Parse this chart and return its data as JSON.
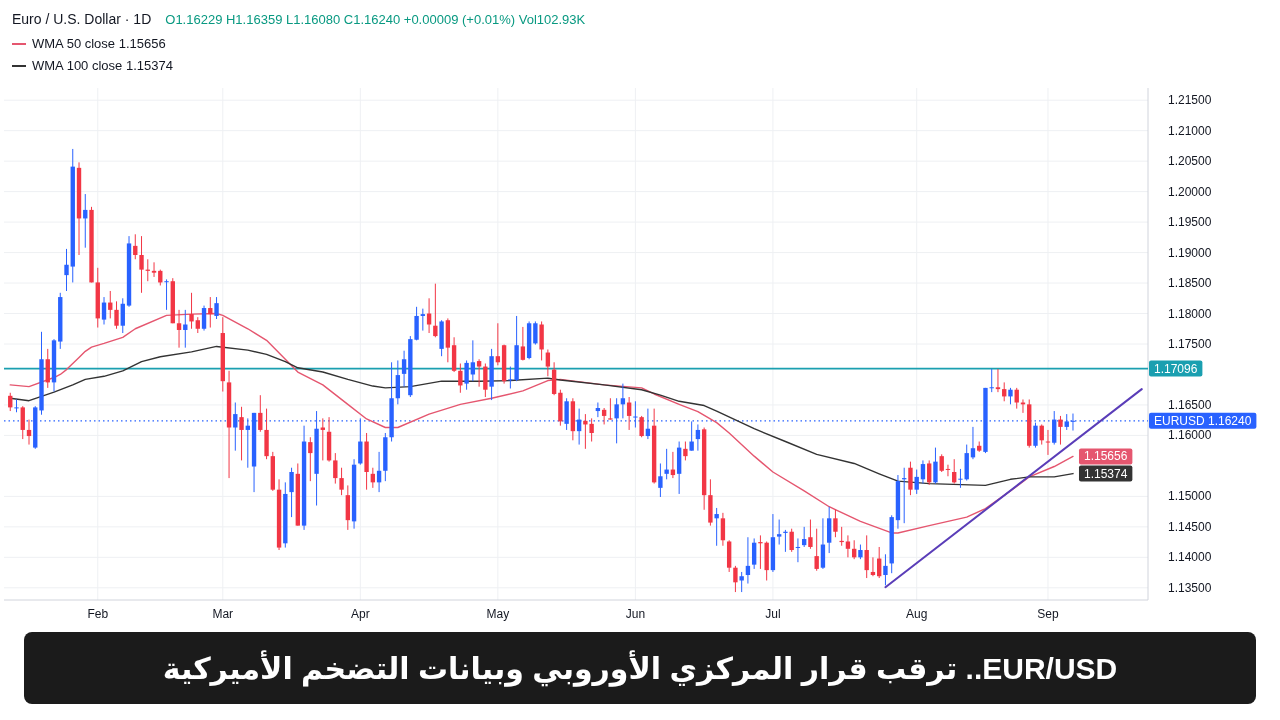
{
  "chart_data": {
    "type": "candlestick",
    "title": "Euro / U.S. Dollar · 1D",
    "subtitle": "O1.16229 H1.16359 L1.16080 C1.16240 +0.00009 (+0.01%) Vol102.93K",
    "categories": [
      null,
      null,
      null,
      null,
      null,
      null,
      null,
      null,
      null,
      null,
      null,
      null,
      null,
      null,
      "Feb",
      null,
      null,
      null,
      null,
      null,
      null,
      null,
      null,
      null,
      null,
      null,
      null,
      null,
      null,
      null,
      null,
      null,
      null,
      null,
      "Mar",
      null,
      null,
      null,
      null,
      null,
      null,
      null,
      null,
      null,
      null,
      null,
      null,
      null,
      null,
      null,
      null,
      null,
      null,
      null,
      null,
      null,
      "Apr",
      null,
      null,
      null,
      null,
      null,
      null,
      null,
      null,
      null,
      null,
      null,
      null,
      null,
      null,
      null,
      null,
      null,
      null,
      null,
      null,
      null,
      "May",
      null,
      null,
      null,
      null,
      null,
      null,
      null,
      null,
      null,
      null,
      null,
      null,
      null,
      null,
      null,
      null,
      null,
      null,
      null,
      null,
      null,
      "Jun",
      null,
      null,
      null,
      null,
      null,
      null,
      null,
      null,
      null,
      null,
      null,
      null,
      null,
      null,
      null,
      null,
      null,
      null,
      null,
      null,
      null,
      "Jul",
      null,
      null,
      null,
      null,
      null,
      null,
      null,
      null,
      null,
      null,
      null,
      null,
      null,
      null,
      null,
      null,
      null,
      null,
      null,
      null,
      null,
      null,
      "Aug",
      null,
      null,
      null,
      null,
      null,
      null,
      null,
      null,
      null,
      null,
      null,
      null,
      null,
      null,
      null,
      null,
      null,
      null,
      null,
      null,
      "Sep",
      null,
      null,
      null,
      null,
      null,
      null,
      null,
      null,
      null,
      null,
      null,
      null,
      null,
      null,
      null
    ],
    "ohlc": [
      [
        1.1665,
        1.167,
        1.164,
        1.1646
      ],
      [
        1.1645,
        1.1659,
        1.1638,
        1.1646
      ],
      [
        1.1646,
        1.1648,
        1.1594,
        1.1609
      ],
      [
        1.1609,
        1.1626,
        1.1585,
        1.1599
      ],
      [
        1.158,
        1.1648,
        1.1578,
        1.1646
      ],
      [
        1.1641,
        1.177,
        1.1634,
        1.1725
      ],
      [
        1.1725,
        1.1742,
        1.1678,
        1.1687
      ],
      [
        1.1687,
        1.1758,
        1.1672,
        1.1756
      ],
      [
        1.1754,
        1.1834,
        1.1742,
        1.1827
      ],
      [
        1.1863,
        1.1906,
        1.1837,
        1.188
      ],
      [
        1.1877,
        1.207,
        1.1851,
        1.2041
      ],
      [
        1.2039,
        1.2048,
        1.1896,
        1.1956
      ],
      [
        1.1956,
        1.1996,
        1.1908,
        1.197
      ],
      [
        1.197,
        1.1975,
        1.1851,
        1.1851
      ],
      [
        1.1851,
        1.1875,
        1.1777,
        1.1792
      ],
      [
        1.179,
        1.1827,
        1.1782,
        1.1818
      ],
      [
        1.1818,
        1.1837,
        1.1792,
        1.1806
      ],
      [
        1.1806,
        1.182,
        1.1775,
        1.178
      ],
      [
        1.178,
        1.1825,
        1.1768,
        1.1816
      ],
      [
        1.1813,
        1.1927,
        1.1811,
        1.1915
      ],
      [
        1.1911,
        1.193,
        1.1889,
        1.1896
      ],
      [
        1.1896,
        1.1927,
        1.1834,
        1.1872
      ],
      [
        1.1872,
        1.1889,
        1.1853,
        1.187
      ],
      [
        1.187,
        1.1884,
        1.186,
        1.1867
      ],
      [
        1.187,
        1.1872,
        1.1846,
        1.1851
      ],
      [
        1.1852,
        1.1856,
        1.1806,
        1.1853
      ],
      [
        1.1853,
        1.1858,
        1.1784,
        1.1784
      ],
      [
        1.1784,
        1.1806,
        1.1744,
        1.1773
      ],
      [
        1.1773,
        1.1806,
        1.1744,
        1.1782
      ],
      [
        1.1799,
        1.1834,
        1.1775,
        1.1787
      ],
      [
        1.1789,
        1.1794,
        1.1768,
        1.1775
      ],
      [
        1.1775,
        1.1813,
        1.1772,
        1.1809
      ],
      [
        1.1809,
        1.1827,
        1.1777,
        1.1799
      ],
      [
        1.1796,
        1.1827,
        1.1791,
        1.1817
      ],
      [
        1.1768,
        1.1794,
        1.1672,
        1.1689
      ],
      [
        1.1687,
        1.1706,
        1.153,
        1.1613
      ],
      [
        1.1613,
        1.1654,
        1.1575,
        1.1635
      ],
      [
        1.163,
        1.1647,
        1.1559,
        1.1609
      ],
      [
        1.1609,
        1.1628,
        1.1547,
        1.1616
      ],
      [
        1.1549,
        1.1637,
        1.1507,
        1.1637
      ],
      [
        1.1637,
        1.1666,
        1.1606,
        1.1609
      ],
      [
        1.1609,
        1.1644,
        1.1561,
        1.1566
      ],
      [
        1.1566,
        1.1573,
        1.1509,
        1.1511
      ],
      [
        1.1511,
        1.1528,
        1.1412,
        1.1416
      ],
      [
        1.1423,
        1.1523,
        1.1416,
        1.1504
      ],
      [
        1.1507,
        1.1547,
        1.1466,
        1.154
      ],
      [
        1.1537,
        1.1554,
        1.1452,
        1.1452
      ],
      [
        1.1452,
        1.1616,
        1.1445,
        1.159
      ],
      [
        1.1589,
        1.1597,
        1.1525,
        1.1571
      ],
      [
        1.1537,
        1.164,
        1.1485,
        1.1611
      ],
      [
        1.1613,
        1.1628,
        1.1559,
        1.1609
      ],
      [
        1.1606,
        1.163,
        1.1557,
        1.1559
      ],
      [
        1.1559,
        1.1571,
        1.1521,
        1.153
      ],
      [
        1.153,
        1.1547,
        1.1502,
        1.1511
      ],
      [
        1.1502,
        1.1518,
        1.1445,
        1.1461
      ],
      [
        1.1459,
        1.1561,
        1.1447,
        1.1552
      ],
      [
        1.1554,
        1.1628,
        1.1552,
        1.159
      ],
      [
        1.159,
        1.1604,
        1.1511,
        1.154
      ],
      [
        1.1537,
        1.1547,
        1.1514,
        1.1523
      ],
      [
        1.1523,
        1.1573,
        1.1507,
        1.1542
      ],
      [
        1.1542,
        1.1604,
        1.1525,
        1.1597
      ],
      [
        1.1597,
        1.172,
        1.159,
        1.1661
      ],
      [
        1.1661,
        1.1723,
        1.1651,
        1.1699
      ],
      [
        1.1701,
        1.1739,
        1.168,
        1.1725
      ],
      [
        1.1666,
        1.1763,
        1.1663,
        1.1758
      ],
      [
        1.1757,
        1.1811,
        1.1756,
        1.1796
      ],
      [
        1.1796,
        1.1808,
        1.1772,
        1.1799
      ],
      [
        1.18,
        1.1825,
        1.1768,
        1.1782
      ],
      [
        1.178,
        1.1849,
        1.1761,
        1.1763
      ],
      [
        1.1742,
        1.1789,
        1.173,
        1.1787
      ],
      [
        1.1789,
        1.1792,
        1.172,
        1.1744
      ],
      [
        1.1748,
        1.1761,
        1.1704,
        1.1706
      ],
      [
        1.1706,
        1.1718,
        1.167,
        1.1682
      ],
      [
        1.1685,
        1.1723,
        1.1675,
        1.1719
      ],
      [
        1.17,
        1.1756,
        1.1689,
        1.172
      ],
      [
        1.1722,
        1.1725,
        1.168,
        1.1713
      ],
      [
        1.1713,
        1.1718,
        1.1663,
        1.1675
      ],
      [
        1.168,
        1.1742,
        1.1658,
        1.173
      ],
      [
        1.173,
        1.1784,
        1.1715,
        1.172
      ],
      [
        1.1748,
        1.1749,
        1.1685,
        1.1689
      ],
      [
        1.1691,
        1.1713,
        1.1677,
        1.1692
      ],
      [
        1.1691,
        1.1796,
        1.1689,
        1.1748
      ],
      [
        1.1746,
        1.1778,
        1.1723,
        1.1724
      ],
      [
        1.1727,
        1.1787,
        1.1725,
        1.1784
      ],
      [
        1.1751,
        1.1787,
        1.1749,
        1.1784
      ],
      [
        1.1782,
        1.1787,
        1.1723,
        1.1741
      ],
      [
        1.1736,
        1.1741,
        1.1697,
        1.1713
      ],
      [
        1.1708,
        1.172,
        1.1666,
        1.1668
      ],
      [
        1.167,
        1.1675,
        1.1616,
        1.1623
      ],
      [
        1.1619,
        1.1661,
        1.1609,
        1.1656
      ],
      [
        1.1656,
        1.1661,
        1.1592,
        1.1607
      ],
      [
        1.1607,
        1.1644,
        1.1585,
        1.1626
      ],
      [
        1.1624,
        1.1635,
        1.1578,
        1.1618
      ],
      [
        1.1619,
        1.1628,
        1.159,
        1.1604
      ],
      [
        1.164,
        1.1654,
        1.163,
        1.1645
      ],
      [
        1.1642,
        1.1645,
        1.1618,
        1.1632
      ],
      [
        1.1628,
        1.1661,
        1.1626,
        1.1626
      ],
      [
        1.1628,
        1.1661,
        1.1587,
        1.1651
      ],
      [
        1.1651,
        1.1685,
        1.1628,
        1.1661
      ],
      [
        1.1654,
        1.1663,
        1.1609,
        1.1632
      ],
      [
        1.163,
        1.1656,
        1.1613,
        1.1631
      ],
      [
        1.163,
        1.1632,
        1.1597,
        1.1599
      ],
      [
        1.1599,
        1.1644,
        1.1594,
        1.1611
      ],
      [
        1.1616,
        1.1644,
        1.1521,
        1.1523
      ],
      [
        1.1514,
        1.1554,
        1.1499,
        1.1533
      ],
      [
        1.1537,
        1.1578,
        1.1528,
        1.1544
      ],
      [
        1.1544,
        1.1573,
        1.153,
        1.1535
      ],
      [
        1.1537,
        1.159,
        1.1504,
        1.158
      ],
      [
        1.1578,
        1.159,
        1.1559,
        1.1566
      ],
      [
        1.1575,
        1.1623,
        1.1575,
        1.159
      ],
      [
        1.1594,
        1.1618,
        1.1575,
        1.1609
      ],
      [
        1.161,
        1.1613,
        1.1478,
        1.1502
      ],
      [
        1.1502,
        1.1528,
        1.1452,
        1.1457
      ],
      [
        1.1464,
        1.1481,
        1.1419,
        1.1471
      ],
      [
        1.1464,
        1.1473,
        1.1419,
        1.1428
      ],
      [
        1.1426,
        1.1428,
        1.1376,
        1.1383
      ],
      [
        1.1383,
        1.1386,
        1.1343,
        1.1359
      ],
      [
        1.1362,
        1.1376,
        1.1343,
        1.1369
      ],
      [
        1.1371,
        1.1433,
        1.1357,
        1.1386
      ],
      [
        1.1388,
        1.1431,
        1.1381,
        1.1424
      ],
      [
        1.1425,
        1.1436,
        1.1381,
        1.1423
      ],
      [
        1.1424,
        1.1426,
        1.1362,
        1.1379
      ],
      [
        1.1379,
        1.1471,
        1.1376,
        1.1433
      ],
      [
        1.1434,
        1.1462,
        1.1421,
        1.1438
      ],
      [
        1.144,
        1.1445,
        1.1409,
        1.1442
      ],
      [
        1.1442,
        1.1447,
        1.1409,
        1.1412
      ],
      [
        1.1416,
        1.1431,
        1.1392,
        1.1417
      ],
      [
        1.142,
        1.145,
        1.1417,
        1.143
      ],
      [
        1.1433,
        1.1462,
        1.1414,
        1.1417
      ],
      [
        1.1402,
        1.1447,
        1.1378,
        1.1381
      ],
      [
        1.1383,
        1.1464,
        1.1381,
        1.1421
      ],
      [
        1.1424,
        1.1483,
        1.1407,
        1.1464
      ],
      [
        1.1464,
        1.1478,
        1.1433,
        1.1442
      ],
      [
        1.1427,
        1.145,
        1.1419,
        1.1425
      ],
      [
        1.1426,
        1.1436,
        1.14,
        1.1414
      ],
      [
        1.1414,
        1.1428,
        1.1397,
        1.14
      ],
      [
        1.14,
        1.1421,
        1.1397,
        1.1412
      ],
      [
        1.1412,
        1.1436,
        1.1366,
        1.1379
      ],
      [
        1.1376,
        1.14,
        1.1369,
        1.1371
      ],
      [
        1.1398,
        1.1417,
        1.1366,
        1.1369
      ],
      [
        1.1371,
        1.1405,
        1.1354,
        1.1386
      ],
      [
        1.139,
        1.1469,
        1.1374,
        1.1466
      ],
      [
        1.1461,
        1.1535,
        1.1447,
        1.1525
      ],
      [
        1.1528,
        1.1547,
        1.1456,
        1.153
      ],
      [
        1.1547,
        1.1557,
        1.1502,
        1.1511
      ],
      [
        1.1511,
        1.1544,
        1.1504,
        1.1532
      ],
      [
        1.1528,
        1.1559,
        1.1521,
        1.1553
      ],
      [
        1.1554,
        1.1559,
        1.1519,
        1.1523
      ],
      [
        1.1523,
        1.158,
        1.1521,
        1.1557
      ],
      [
        1.1566,
        1.1569,
        1.154,
        1.1542
      ],
      [
        1.1545,
        1.1552,
        1.1533,
        1.1544
      ],
      [
        1.154,
        1.1561,
        1.1521,
        1.1523
      ],
      [
        1.1528,
        1.1545,
        1.1514,
        1.1529
      ],
      [
        1.1528,
        1.1585,
        1.1526,
        1.1571
      ],
      [
        1.1564,
        1.1614,
        1.1561,
        1.1579
      ],
      [
        1.1583,
        1.159,
        1.1573,
        1.1575
      ],
      [
        1.1573,
        1.1678,
        1.1571,
        1.1678
      ],
      [
        1.1678,
        1.1709,
        1.1671,
        1.1679
      ],
      [
        1.1679,
        1.1709,
        1.1671,
        1.1676
      ],
      [
        1.1676,
        1.1687,
        1.1656,
        1.1664
      ],
      [
        1.1664,
        1.1678,
        1.1651,
        1.1675
      ],
      [
        1.1675,
        1.1678,
        1.1644,
        1.1654
      ],
      [
        1.1654,
        1.1659,
        1.1637,
        1.1651
      ],
      [
        1.1651,
        1.1659,
        1.158,
        1.1583
      ],
      [
        1.1583,
        1.1621,
        1.158,
        1.1616
      ],
      [
        1.1616,
        1.1618,
        1.1585,
        1.1592
      ],
      [
        1.159,
        1.1609,
        1.1568,
        1.1589
      ],
      [
        1.1588,
        1.164,
        1.1585,
        1.1626
      ],
      [
        1.1626,
        1.1632,
        1.1585,
        1.1614
      ],
      [
        1.1614,
        1.1635,
        1.1609,
        1.1623
      ],
      [
        1.16229,
        1.16359,
        1.1608,
        1.1624
      ],
      null,
      null,
      null,
      null,
      null,
      null,
      null,
      null,
      null,
      null,
      null
    ],
    "series": [
      {
        "name": "WMA 50 close 1.15656",
        "type": "line",
        "color": "#e5566f",
        "values": [
          1.1683,
          null,
          null,
          1.168,
          null,
          null,
          null,
          1.1695,
          1.17,
          1.1708,
          1.1718,
          1.1728,
          1.1738,
          1.1745,
          null,
          1.1751,
          null,
          null,
          1.1761,
          null,
          1.1775,
          null,
          null,
          null,
          null,
          1.1797,
          null,
          null,
          null,
          1.1799,
          null,
          null,
          null,
          1.18,
          1.1797,
          null,
          null,
          null,
          1.1775,
          null,
          null,
          1.1756,
          null,
          null,
          1.1725,
          null,
          1.1704,
          null,
          null,
          null,
          1.1683,
          null,
          null,
          null,
          1.1651,
          null,
          null,
          1.1627,
          null,
          null,
          1.1613,
          null,
          1.1613,
          null,
          null,
          null,
          null,
          1.1635,
          null,
          null,
          null,
          null,
          1.1651,
          null,
          null,
          null,
          null,
          1.1661,
          null,
          null,
          null,
          null,
          1.1673,
          null,
          null,
          null,
          1.169,
          null,
          1.1692,
          null,
          null,
          null,
          null,
          null,
          null,
          1.1683,
          null,
          null,
          null,
          null,
          null,
          1.1678,
          null,
          1.1668,
          null,
          null,
          null,
          1.1651,
          null,
          null,
          1.1639,
          null,
          null,
          1.1621,
          null,
          1.1604,
          null,
          null,
          null,
          1.1566,
          null,
          null,
          1.154,
          null,
          null,
          null,
          null,
          1.1509,
          null,
          null,
          null,
          1.1483,
          null,
          null,
          null,
          null,
          1.1459,
          null,
          null,
          null,
          null,
          1.144,
          1.144,
          null,
          null,
          null,
          null,
          1.1452,
          null,
          null,
          null,
          null,
          null,
          1.1466,
          null,
          null,
          1.148,
          null,
          null,
          null,
          1.1509,
          null,
          null,
          1.1532,
          null,
          null,
          null,
          1.1549,
          null,
          null,
          1.15656,
          null,
          null,
          null,
          null,
          null,
          null,
          null,
          null,
          null,
          null,
          null
        ],
        "value_labels": [
          null,
          null,
          null,
          null,
          null,
          null,
          null,
          null,
          null,
          null,
          null,
          null,
          null,
          null,
          null,
          null,
          null,
          null,
          null,
          null,
          null,
          null,
          null,
          null,
          null,
          null,
          null,
          null,
          null,
          null,
          null,
          null,
          null,
          null,
          null,
          null,
          null,
          null,
          null,
          null,
          null,
          null,
          null,
          null,
          null,
          null,
          null,
          null,
          null,
          null,
          null,
          null,
          null,
          null,
          null,
          null,
          null,
          null,
          null,
          null,
          null,
          null,
          null,
          null,
          null,
          null,
          null,
          null,
          null,
          null,
          null,
          null,
          null,
          null,
          null,
          null,
          null,
          null,
          null,
          null,
          null,
          null,
          null,
          null,
          null,
          null,
          null,
          null,
          null,
          null,
          null,
          null,
          null,
          null,
          null,
          null,
          null,
          null,
          null,
          null,
          null,
          null,
          null,
          null,
          null,
          null,
          null,
          null,
          null,
          null,
          null,
          null,
          null,
          null,
          null,
          null,
          null,
          null,
          null,
          null,
          null,
          null,
          null,
          null,
          null,
          null,
          null,
          null,
          null,
          null,
          null,
          null,
          null,
          null,
          null,
          null,
          null,
          null,
          null,
          null,
          null,
          null,
          null,
          null,
          null,
          null,
          null,
          null,
          null,
          null,
          null,
          null,
          null,
          null,
          null,
          null,
          null,
          null,
          null,
          null,
          null,
          null,
          null,
          null,
          null,
          null,
          null,
          null,
          null,
          null,
          "1.15656",
          null,
          null,
          null,
          null,
          null,
          null,
          null,
          null,
          null,
          null,
          null
        ]
      },
      {
        "name": "WMA 100 close 1.15374",
        "type": "line",
        "color": "#333333",
        "values": [
          1.1661,
          null,
          null,
          1.1657,
          null,
          null,
          null,
          1.1671,
          null,
          null,
          1.1683,
          null,
          1.1692,
          null,
          null,
          1.1697,
          null,
          null,
          1.1706,
          null,
          null,
          1.1721,
          null,
          null,
          1.1729,
          null,
          null,
          null,
          null,
          1.1737,
          null,
          null,
          null,
          1.1746,
          null,
          null,
          null,
          null,
          1.174,
          null,
          null,
          1.1733,
          null,
          null,
          1.1721,
          null,
          1.1711,
          null,
          null,
          null,
          1.1704,
          null,
          null,
          null,
          1.1692,
          null,
          null,
          null,
          1.1681,
          null,
          1.1678,
          null,
          null,
          null,
          1.168,
          null,
          null,
          null,
          null,
          1.1689,
          null,
          null,
          null,
          null,
          null,
          1.1689,
          null,
          null,
          null,
          null,
          1.169,
          null,
          null,
          null,
          null,
          null,
          1.1694,
          null,
          1.1691,
          null,
          null,
          null,
          null,
          null,
          null,
          1.1683,
          null,
          null,
          null,
          null,
          null,
          1.1675,
          null,
          null,
          1.1666,
          null,
          null,
          1.1656,
          null,
          null,
          null,
          1.1649,
          null,
          1.164,
          null,
          null,
          null,
          null,
          null,
          1.1611,
          null,
          null,
          null,
          null,
          1.159,
          null,
          null,
          null,
          null,
          1.1569,
          null,
          null,
          null,
          null,
          null,
          1.1554,
          null,
          null,
          null,
          1.1537,
          null,
          null,
          1.1525,
          null,
          null,
          null,
          null,
          1.1521,
          null,
          null,
          null,
          null,
          null,
          null,
          null,
          null,
          1.1518,
          null,
          null,
          null,
          1.1528,
          null,
          null,
          1.1532,
          null,
          null,
          null,
          1.1532,
          null,
          null,
          1.15374,
          null,
          null,
          null,
          null,
          null,
          null,
          null,
          null,
          null,
          null,
          null
        ],
        "value_labels": [
          null,
          null,
          null,
          null,
          null,
          null,
          null,
          null,
          null,
          null,
          null,
          null,
          null,
          null,
          null,
          null,
          null,
          null,
          null,
          null,
          null,
          null,
          null,
          null,
          null,
          null,
          null,
          null,
          null,
          null,
          null,
          null,
          null,
          null,
          null,
          null,
          null,
          null,
          null,
          null,
          null,
          null,
          null,
          null,
          null,
          null,
          null,
          null,
          null,
          null,
          null,
          null,
          null,
          null,
          null,
          null,
          null,
          null,
          null,
          null,
          null,
          null,
          null,
          null,
          null,
          null,
          null,
          null,
          null,
          null,
          null,
          null,
          null,
          null,
          null,
          null,
          null,
          null,
          null,
          null,
          null,
          null,
          null,
          null,
          null,
          null,
          null,
          null,
          null,
          null,
          null,
          null,
          null,
          null,
          null,
          null,
          null,
          null,
          null,
          null,
          null,
          null,
          null,
          null,
          null,
          null,
          null,
          null,
          null,
          null,
          null,
          null,
          null,
          null,
          null,
          null,
          null,
          null,
          null,
          null,
          null,
          null,
          null,
          null,
          null,
          null,
          null,
          null,
          null,
          null,
          null,
          null,
          null,
          null,
          null,
          null,
          null,
          null,
          null,
          null,
          null,
          null,
          null,
          null,
          null,
          null,
          null,
          null,
          null,
          null,
          null,
          null,
          null,
          null,
          null,
          null,
          null,
          null,
          null,
          null,
          null,
          null,
          null,
          null,
          null,
          null,
          null,
          null,
          null,
          null,
          "1.15374",
          null,
          null,
          null,
          null,
          null,
          null,
          null,
          null,
          null,
          null,
          null
        ]
      },
      {
        "type": "line",
        "color": "#5a3db8",
        "values": [
          null,
          null,
          null,
          null,
          null,
          null,
          null,
          null,
          null,
          null,
          null,
          null,
          null,
          null,
          null,
          null,
          null,
          null,
          null,
          null,
          null,
          null,
          null,
          null,
          null,
          null,
          null,
          null,
          null,
          null,
          null,
          null,
          null,
          null,
          null,
          null,
          null,
          null,
          null,
          null,
          null,
          null,
          null,
          null,
          null,
          null,
          null,
          null,
          null,
          null,
          null,
          null,
          null,
          null,
          null,
          null,
          null,
          null,
          null,
          null,
          null,
          null,
          null,
          null,
          null,
          null,
          null,
          null,
          null,
          null,
          null,
          null,
          null,
          null,
          null,
          null,
          null,
          null,
          null,
          null,
          null,
          null,
          null,
          null,
          null,
          null,
          null,
          null,
          null,
          null,
          null,
          null,
          null,
          null,
          null,
          null,
          null,
          null,
          null,
          null,
          null,
          null,
          null,
          null,
          null,
          null,
          null,
          null,
          null,
          null,
          null,
          null,
          null,
          null,
          null,
          null,
          null,
          null,
          null,
          null,
          null,
          null,
          null,
          null,
          null,
          null,
          null,
          null,
          null,
          null,
          null,
          null,
          null,
          null,
          null,
          null,
          null,
          null,
          null,
          null,
          1.1351,
          null,
          null,
          null,
          null,
          null,
          null,
          null,
          null,
          null,
          null,
          null,
          null,
          null,
          null,
          null,
          null,
          null,
          null,
          null,
          null,
          null,
          null,
          null,
          null,
          null,
          null,
          null,
          null,
          null,
          null,
          null,
          null,
          null,
          null,
          null,
          null,
          null,
          null,
          null,
          null,
          1.1676
        ]
      }
    ],
    "ref_lines": [
      {
        "axis": "y",
        "value": 1.17096,
        "label": "1.17096",
        "color": "#1a9fb0",
        "line_style": "solid"
      },
      {
        "axis": "y",
        "value": 1.1624,
        "label": "EURUSD 1.16240",
        "color": "#2962ff",
        "line_style": "dotted"
      }
    ],
    "ylim": [
      1.133,
      1.217
    ],
    "yticks": [
      {
        "value": 1.135,
        "label": "1.13500"
      },
      {
        "value": 1.14,
        "label": "1.14000"
      },
      {
        "value": 1.145,
        "label": "1.14500"
      },
      {
        "value": 1.15,
        "label": "1.15000"
      },
      {
        "value": 1.16,
        "label": "1.16000"
      },
      {
        "value": 1.165,
        "label": "1.16500"
      },
      {
        "value": 1.175,
        "label": "1.17500"
      },
      {
        "value": 1.18,
        "label": "1.18000"
      },
      {
        "value": 1.185,
        "label": "1.18500"
      },
      {
        "value": 1.19,
        "label": "1.19000"
      },
      {
        "value": 1.195,
        "label": "1.19500"
      },
      {
        "value": 1.2,
        "label": "1.20000"
      },
      {
        "value": 1.205,
        "label": "1.20500"
      },
      {
        "value": 1.21,
        "label": "1.21000"
      },
      {
        "value": 1.215,
        "label": "1.21500"
      }
    ],
    "grid": true,
    "legend": "top left",
    "annotations": [
      "EUR/USD.. ترقب قرار المركزي الأوروبي وبيانات التضخم الأميركية"
    ]
  }
}
